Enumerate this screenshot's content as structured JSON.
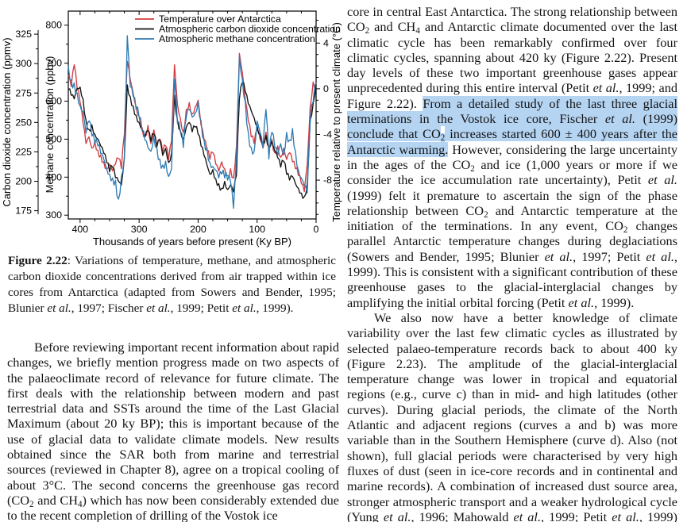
{
  "figure": {
    "caption": [
      {
        "t": "Figure 2.22",
        "b": 1
      },
      {
        "t": ": Variations of temperature, methane, and atmospheric carbon dioxide concentrations derived from air trapped within ice cores from Antarctica (adapted from Sowers and Bender, 1995; Blunier "
      },
      {
        "t": "et al.",
        "i": 1
      },
      {
        "t": ", 1997; Fischer "
      },
      {
        "t": "et al.",
        "i": 1
      },
      {
        "t": ", 1999; Petit "
      },
      {
        "t": "et al.",
        "i": 1
      },
      {
        "t": ", 1999)."
      }
    ]
  },
  "left_column": {
    "paragraph": [
      {
        "t": "Before reviewing important recent information about rapid changes, we briefly mention progress made on two aspects of the palaeoclimate record of relevance for future climate. The first deals with the relationship between modern and past terrestrial data and SSTs around the time of the Last Glacial Maximum (about 20 ky BP); this is important because of the use of glacial data to validate climate models. New results obtained since the SAR both from marine and terrestrial sources (reviewed in Chapter 8), agree on a tropical cooling of about 3°C. The second concerns the greenhouse gas record (CO"
      },
      {
        "t": "2",
        "sub": 1
      },
      {
        "t": " and CH"
      },
      {
        "t": "4",
        "sub": 1
      },
      {
        "t": ") which has now been considerably extended due to the recent completion of drilling of the Vostok ice"
      }
    ]
  },
  "right_column": {
    "paragraph1": [
      {
        "t": "core in central East Antarctica. The strong relationship between CO"
      },
      {
        "t": "2",
        "sub": 1
      },
      {
        "t": " and CH"
      },
      {
        "t": "4",
        "sub": 1
      },
      {
        "t": " and Antarctic climate documented over the last climatic cycle has been remarkably confirmed over four climatic cycles, spanning about 420 ky (Figure 2.22). Present day levels of these two important greenhouse gases appear unprecedented during this entire interval (Petit "
      },
      {
        "t": "et al.",
        "i": 1
      },
      {
        "t": ", 1999; and Figure 2.22). "
      },
      {
        "t": "From a detailed study of the last three glacial terminations in the Vostok ice core, Fischer ",
        "h": 1
      },
      {
        "t": "et al.",
        "i": 1,
        "h": 1
      },
      {
        "t": " (1999) conclude that CO",
        "h": 1
      },
      {
        "t": "2",
        "sub": 1,
        "h": 1
      },
      {
        "t": " increases started 600 ± 400 years after the Antarctic warming.",
        "h": 1
      },
      {
        "t": " However, considering the large uncertainty in the ages of the CO"
      },
      {
        "t": "2",
        "sub": 1
      },
      {
        "t": " and ice (1,000 years or more if we consider the ice accumulation rate uncertainty), Petit "
      },
      {
        "t": "et al.",
        "i": 1
      },
      {
        "t": " (1999) felt it premature to ascertain the sign of the phase relationship between CO"
      },
      {
        "t": "2",
        "sub": 1
      },
      {
        "t": " and Antarctic temperature at the initiation of the terminations. In any event, CO"
      },
      {
        "t": "2",
        "sub": 1
      },
      {
        "t": " changes parallel Antarctic temperature changes during deglaciations (Sowers and Bender, 1995; Blunier "
      },
      {
        "t": "et al.",
        "i": 1
      },
      {
        "t": ", 1997; Petit "
      },
      {
        "t": "et al.",
        "i": 1
      },
      {
        "t": ", 1999). This is consistent with a significant contribution of these greenhouse gases to the glacial-interglacial changes by amplifying the initial orbital forcing (Petit "
      },
      {
        "t": "et al.",
        "i": 1
      },
      {
        "t": ", 1999)."
      }
    ],
    "paragraph2": [
      {
        "t": "We also now have a better knowledge of climate variability over the last few climatic cycles as illustrated by selected palaeo-temperature records back to about 400 ky (Figure 2.23). The amplitude of the glacial-interglacial temperature change was lower in tropical and equatorial regions (e.g., curve c) than in mid- and high latitudes (other curves). During glacial periods, the climate of the North Atlantic and adjacent regions (curves a and b) was more variable than in the Southern Hemisphere (curve d). Also (not shown), full glacial periods were characterised by very high fluxes of dust (seen in ice-core records and in continental and marine records). A combination of increased dust source area, stronger atmospheric transport and a weaker hydrological cycle (Yung "
      },
      {
        "t": "et al.",
        "i": 1
      },
      {
        "t": ", 1996; Mahowald "
      },
      {
        "t": "et al.",
        "i": 1
      },
      {
        "t": ", 1999; Petit "
      },
      {
        "t": "et al.",
        "i": 1
      },
      {
        "t": ", 1999) probably generated these changes."
      }
    ]
  },
  "chart_data": {
    "type": "line",
    "title": "",
    "xlabel": "Thousands of years before present (Ky BP)",
    "x_axis": {
      "ticks": [
        400,
        300,
        200,
        100,
        0
      ],
      "minor_step": 25,
      "range": [
        420,
        0
      ]
    },
    "axes": {
      "co2": {
        "label": "Carbon dioxide concentration (ppmv)",
        "ticks": [
          175,
          200,
          225,
          250,
          275,
          300,
          325
        ],
        "minor_step": 12.5,
        "range": [
          168,
          344.6
        ]
      },
      "ch4": {
        "label": "Methane concentration (ppbv)",
        "ticks": [
          300,
          400,
          500,
          600,
          700,
          800
        ],
        "minor_step": 50,
        "range": [
          290,
          837
        ]
      },
      "temp": {
        "label": "Temperature relative to present climate (°C)",
        "ticks": [
          4,
          0,
          -4,
          -8
        ],
        "minor_step": 1,
        "range": [
          -11.4,
          6.8
        ]
      }
    },
    "legend": [
      {
        "label": "Temperature over Antarctica",
        "series": "temp",
        "color": "#d23b41"
      },
      {
        "label": "Atmospheric carbon dioxide concentration",
        "series": "co2",
        "color": "#141414"
      },
      {
        "label": "Atmospheric methane concentration",
        "series": "ch4",
        "color": "#2e7cb4"
      }
    ],
    "x_ky": [
      420,
      415,
      410,
      405,
      400,
      395,
      390,
      385,
      380,
      375,
      370,
      365,
      360,
      355,
      350,
      345,
      340,
      335,
      330,
      325,
      320,
      315,
      310,
      305,
      300,
      295,
      290,
      285,
      280,
      275,
      270,
      265,
      260,
      255,
      250,
      245,
      240,
      235,
      230,
      225,
      220,
      215,
      210,
      205,
      200,
      195,
      190,
      185,
      180,
      175,
      170,
      165,
      160,
      155,
      150,
      145,
      140,
      135,
      130,
      125,
      120,
      115,
      110,
      105,
      100,
      95,
      90,
      85,
      80,
      75,
      70,
      65,
      60,
      55,
      50,
      45,
      40,
      35,
      30,
      25,
      20,
      15,
      10,
      5,
      0
    ],
    "series": [
      {
        "name": "Temperature over Antarctica",
        "axis": "temp",
        "color": "#d23b41",
        "values": [
          1.2,
          0.2,
          2.1,
          0.0,
          -1.2,
          -3.0,
          -4.8,
          -4.2,
          -5.2,
          -4.6,
          -5.4,
          -5.8,
          -6.4,
          -7.0,
          -6.6,
          -7.2,
          -6.6,
          -6.1,
          -7.0,
          -4.0,
          2.4,
          0.8,
          -0.4,
          -1.6,
          -2.4,
          -3.4,
          -4.2,
          -3.2,
          -4.8,
          -3.6,
          -5.0,
          -4.4,
          -5.6,
          -5.0,
          -6.2,
          -4.6,
          2.1,
          -1.4,
          -2.6,
          -3.8,
          -1.8,
          -1.2,
          -2.2,
          -1.6,
          -1.0,
          -3.2,
          -4.4,
          -5.4,
          -6.2,
          -5.6,
          -6.6,
          -7.2,
          -6.4,
          -7.0,
          -7.6,
          -7.0,
          -7.8,
          -5.0,
          3.1,
          1.4,
          -1.0,
          -2.8,
          -4.2,
          -4.8,
          -3.6,
          -4.4,
          -5.2,
          -3.8,
          -5.0,
          -4.4,
          -5.6,
          -5.0,
          -6.0,
          -5.2,
          -6.2,
          -5.6,
          -6.4,
          -7.0,
          -7.6,
          -8.3,
          -9.0,
          -6.6,
          -1.6,
          0.6,
          0.2
        ]
      },
      {
        "name": "Atmospheric carbon dioxide concentration",
        "axis": "co2",
        "color": "#141414",
        "values": [
          278,
          273,
          270,
          279,
          280,
          270,
          252,
          244,
          248,
          240,
          236,
          230,
          224,
          216,
          208,
          212,
          203,
          200,
          197,
          220,
          282,
          272,
          264,
          256,
          250,
          244,
          238,
          243,
          234,
          240,
          229,
          235,
          222,
          228,
          216,
          224,
          273,
          252,
          243,
          236,
          246,
          250,
          242,
          246,
          240,
          230,
          222,
          214,
          206,
          210,
          202,
          198,
          194,
          200,
          193,
          197,
          191,
          205,
          270,
          284,
          276,
          266,
          260,
          254,
          247,
          240,
          233,
          239,
          229,
          234,
          226,
          220,
          212,
          217,
          206,
          201,
          204,
          198,
          194,
          190,
          187,
          198,
          252,
          266,
          281
        ]
      },
      {
        "name": "Atmospheric methane concentration",
        "axis": "ch4",
        "color": "#2e7cb4",
        "values": [
          693,
          655,
          648,
          622,
          588,
          572,
          516,
          548,
          508,
          488,
          482,
          462,
          448,
          422,
          408,
          398,
          392,
          342,
          402,
          452,
          772,
          638,
          612,
          578,
          558,
          522,
          498,
          478,
          468,
          508,
          478,
          448,
          432,
          442,
          402,
          422,
          658,
          542,
          518,
          478,
          558,
          578,
          558,
          568,
          598,
          548,
          498,
          478,
          438,
          428,
          418,
          398,
          408,
          398,
          392,
          388,
          318,
          448,
          718,
          658,
          598,
          518,
          478,
          468,
          548,
          518,
          478,
          578,
          448,
          518,
          478,
          458,
          488,
          458,
          518,
          498,
          528,
          468,
          418,
          398,
          378,
          358,
          548,
          598,
          648
        ]
      }
    ]
  }
}
